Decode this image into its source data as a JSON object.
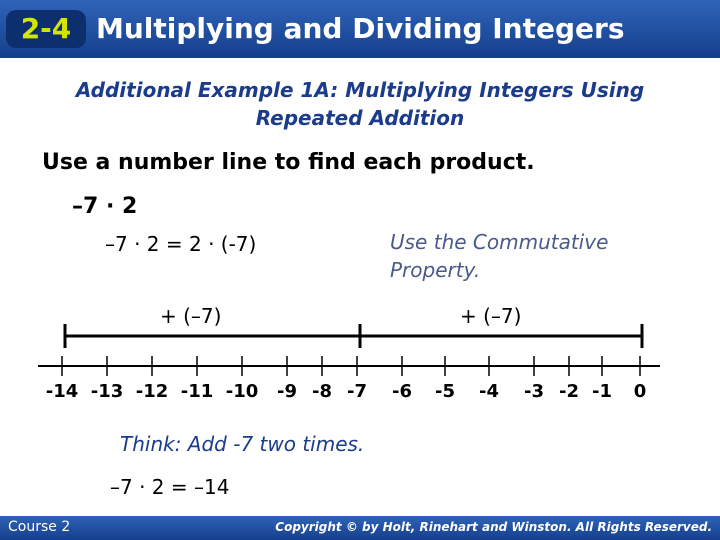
{
  "header": {
    "lesson": "2-4",
    "title": "Multiplying and Dividing Integers"
  },
  "subtitle": "Additional Example 1A: Multiplying Integers Using Repeated Addition",
  "instruction": "Use a number line to find each product.",
  "problem": "–7 · 2",
  "step": "–7 · 2 = 2 · (-7)",
  "note": "Use the Commutative Property.",
  "jumps": [
    "+ (–7)",
    "+ (–7)"
  ],
  "number_line": {
    "labels": [
      "-14",
      "-13",
      "-12",
      "-11",
      "-10",
      "-9",
      "-8",
      "-7",
      "-6",
      "-5",
      "-4",
      "-3",
      "-2",
      "-1",
      "0"
    ]
  },
  "think": "Think: Add -7 two times.",
  "answer": "–7 · 2 = –14",
  "footer": {
    "course": "Course 2",
    "copyright": "Copyright © by Holt, Rinehart and Winston. All Rights Reserved."
  }
}
